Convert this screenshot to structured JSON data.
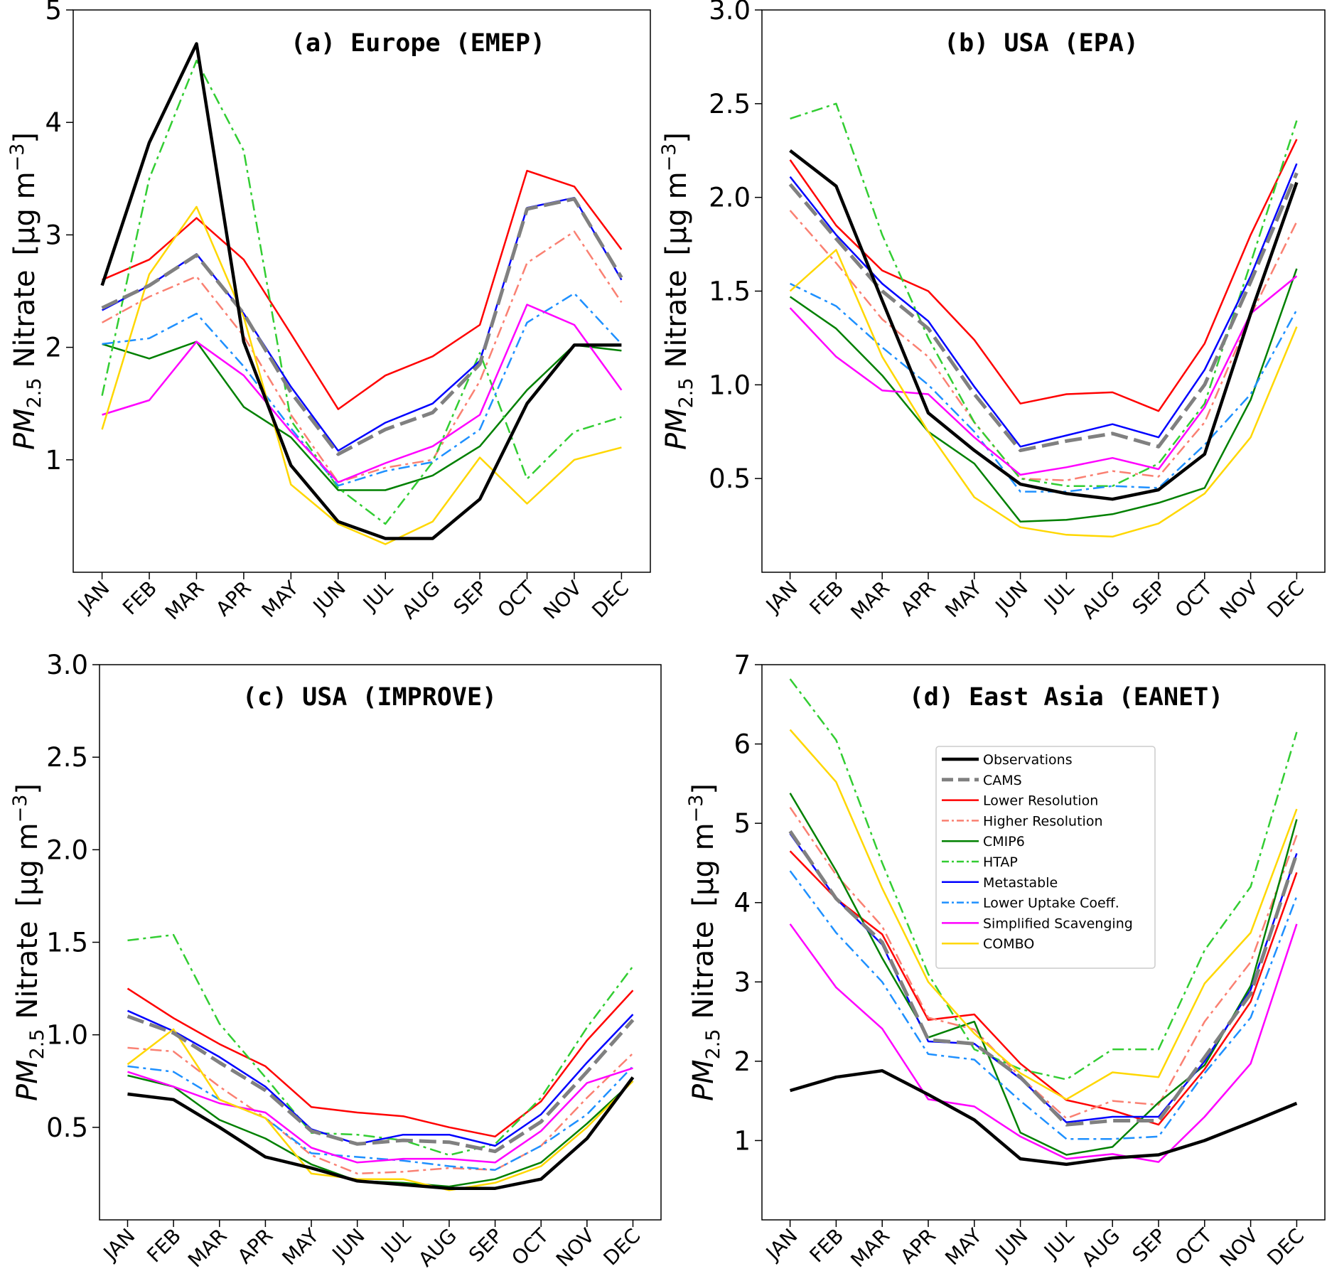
{
  "chart_data": [
    {
      "type": "line",
      "title": "(a) Europe (EMEP)",
      "ylabel_main": "PM",
      "ylabel_sub": "2.5",
      "ylabel_rest": "Nitrate",
      "ylabel_unit": "[µg m",
      "ylabel_exp": "−3",
      "ylabel_close": "]",
      "ylim": [
        0.0,
        5.0
      ],
      "yticks": [
        1,
        2,
        3,
        4,
        5
      ],
      "ytick_labels": [
        "1",
        "2",
        "3",
        "4",
        "5"
      ],
      "x": [
        "JAN",
        "FEB",
        "MAR",
        "APR",
        "MAY",
        "JUN",
        "JUL",
        "AUG",
        "SEP",
        "OCT",
        "NOV",
        "DEC"
      ],
      "series": [
        {
          "name": "Observations",
          "values": [
            2.55,
            3.82,
            4.7,
            2.05,
            0.95,
            0.45,
            0.3,
            0.3,
            0.65,
            1.5,
            2.02,
            2.02
          ]
        },
        {
          "name": "CAMS",
          "values": [
            2.35,
            2.55,
            2.82,
            2.3,
            1.6,
            1.05,
            1.27,
            1.42,
            1.85,
            3.23,
            3.32,
            2.62
          ]
        },
        {
          "name": "Lower Resolution",
          "values": [
            2.6,
            2.78,
            3.15,
            2.78,
            2.12,
            1.45,
            1.75,
            1.92,
            2.2,
            3.57,
            3.43,
            2.87
          ]
        },
        {
          "name": "Higher Resolution",
          "values": [
            2.22,
            2.45,
            2.63,
            2.1,
            1.4,
            0.8,
            0.93,
            1.0,
            1.7,
            2.75,
            3.03,
            2.4
          ]
        },
        {
          "name": "CMIP6",
          "values": [
            2.03,
            1.9,
            2.05,
            1.47,
            1.2,
            0.73,
            0.73,
            0.86,
            1.12,
            1.62,
            2.02,
            1.97
          ]
        },
        {
          "name": "HTAP",
          "values": [
            1.57,
            3.5,
            4.55,
            3.75,
            1.35,
            0.75,
            0.43,
            0.98,
            1.95,
            0.83,
            1.25,
            1.38
          ]
        },
        {
          "name": "Metastable",
          "values": [
            2.33,
            2.55,
            2.83,
            2.3,
            1.65,
            1.08,
            1.33,
            1.5,
            1.88,
            3.24,
            3.33,
            2.6
          ]
        },
        {
          "name": "Lower Uptake Coeff.",
          "values": [
            2.03,
            2.08,
            2.3,
            1.83,
            1.28,
            0.77,
            0.9,
            0.98,
            1.27,
            2.22,
            2.48,
            2.03
          ]
        },
        {
          "name": "Simplified Scavenging",
          "values": [
            1.4,
            1.53,
            2.05,
            1.75,
            1.25,
            0.8,
            0.97,
            1.12,
            1.4,
            2.38,
            2.2,
            1.62
          ]
        },
        {
          "name": "COMBO",
          "values": [
            1.27,
            2.65,
            3.25,
            2.27,
            0.78,
            0.43,
            0.25,
            0.45,
            1.02,
            0.61,
            1.0,
            1.11
          ]
        }
      ]
    },
    {
      "type": "line",
      "title": "(b) USA (EPA)",
      "ylabel_main": "PM",
      "ylabel_sub": "2.5",
      "ylabel_rest": "Nitrate",
      "ylabel_unit": "[µg m",
      "ylabel_exp": "−3",
      "ylabel_close": "]",
      "ylim": [
        0.0,
        3.0
      ],
      "yticks": [
        0.5,
        1.0,
        1.5,
        2.0,
        2.5,
        3.0
      ],
      "ytick_labels": [
        "0.5",
        "1.0",
        "1.5",
        "2.0",
        "2.5",
        "3.0"
      ],
      "x": [
        "JAN",
        "FEB",
        "MAR",
        "APR",
        "MAY",
        "JUN",
        "JUL",
        "AUG",
        "SEP",
        "OCT",
        "NOV",
        "DEC"
      ],
      "series": [
        {
          "name": "Observations",
          "values": [
            2.25,
            2.06,
            1.45,
            0.85,
            0.65,
            0.47,
            0.42,
            0.39,
            0.44,
            0.63,
            1.38,
            2.08
          ]
        },
        {
          "name": "CAMS",
          "values": [
            2.07,
            1.78,
            1.5,
            1.3,
            0.95,
            0.65,
            0.7,
            0.74,
            0.67,
            1.0,
            1.55,
            2.13
          ]
        },
        {
          "name": "Lower Resolution",
          "values": [
            2.2,
            1.85,
            1.61,
            1.5,
            1.24,
            0.9,
            0.95,
            0.96,
            0.86,
            1.22,
            1.8,
            2.31
          ]
        },
        {
          "name": "Higher Resolution",
          "values": [
            1.93,
            1.65,
            1.35,
            1.15,
            0.8,
            0.5,
            0.49,
            0.54,
            0.51,
            0.8,
            1.37,
            1.87
          ]
        },
        {
          "name": "CMIP6",
          "values": [
            1.47,
            1.3,
            1.05,
            0.75,
            0.58,
            0.27,
            0.28,
            0.31,
            0.37,
            0.45,
            0.92,
            1.62
          ]
        },
        {
          "name": "HTAP",
          "values": [
            2.42,
            2.5,
            1.8,
            1.25,
            0.8,
            0.5,
            0.46,
            0.46,
            0.58,
            0.9,
            1.65,
            2.41
          ]
        },
        {
          "name": "Metastable",
          "values": [
            2.11,
            1.8,
            1.54,
            1.34,
            0.99,
            0.67,
            0.73,
            0.79,
            0.72,
            1.08,
            1.58,
            2.18
          ]
        },
        {
          "name": "Lower Uptake Coeff.",
          "values": [
            1.54,
            1.42,
            1.2,
            1.0,
            0.75,
            0.43,
            0.43,
            0.46,
            0.45,
            0.68,
            0.95,
            1.4
          ]
        },
        {
          "name": "Simplified Scavenging",
          "values": [
            1.41,
            1.15,
            0.97,
            0.95,
            0.72,
            0.52,
            0.56,
            0.61,
            0.55,
            0.88,
            1.38,
            1.58
          ]
        },
        {
          "name": "COMBO",
          "values": [
            1.5,
            1.72,
            1.15,
            0.75,
            0.4,
            0.24,
            0.2,
            0.19,
            0.26,
            0.42,
            0.72,
            1.31
          ]
        }
      ]
    },
    {
      "type": "line",
      "title": "(c) USA (IMPROVE)",
      "ylabel_main": "PM",
      "ylabel_sub": "2.5",
      "ylabel_rest": "Nitrate",
      "ylabel_unit": "[µg m",
      "ylabel_exp": "−3",
      "ylabel_close": "]",
      "ylim": [
        0.0,
        3.0
      ],
      "yticks": [
        0.5,
        1.0,
        1.5,
        2.0,
        2.5,
        3.0
      ],
      "ytick_labels": [
        "0.5",
        "1.0",
        "1.5",
        "2.0",
        "2.5",
        "3.0"
      ],
      "x": [
        "JAN",
        "FEB",
        "MAR",
        "APR",
        "MAY",
        "JUN",
        "JUL",
        "AUG",
        "SEP",
        "OCT",
        "NOV",
        "DEC"
      ],
      "series": [
        {
          "name": "Observations",
          "values": [
            0.68,
            0.65,
            0.5,
            0.34,
            0.28,
            0.21,
            0.19,
            0.17,
            0.17,
            0.22,
            0.44,
            0.77
          ]
        },
        {
          "name": "CAMS",
          "values": [
            1.1,
            1.01,
            0.85,
            0.7,
            0.48,
            0.41,
            0.43,
            0.42,
            0.37,
            0.53,
            0.8,
            1.08
          ]
        },
        {
          "name": "Lower Resolution",
          "values": [
            1.25,
            1.09,
            0.95,
            0.83,
            0.61,
            0.58,
            0.56,
            0.5,
            0.45,
            0.64,
            0.97,
            1.24
          ]
        },
        {
          "name": "Higher Resolution",
          "values": [
            0.93,
            0.91,
            0.72,
            0.55,
            0.35,
            0.25,
            0.26,
            0.28,
            0.27,
            0.4,
            0.66,
            0.9
          ]
        },
        {
          "name": "CMIP6",
          "values": [
            0.78,
            0.72,
            0.54,
            0.44,
            0.3,
            0.21,
            0.2,
            0.18,
            0.22,
            0.31,
            0.52,
            0.75
          ]
        },
        {
          "name": "HTAP",
          "values": [
            1.51,
            1.54,
            1.06,
            0.77,
            0.47,
            0.46,
            0.43,
            0.35,
            0.41,
            0.66,
            1.04,
            1.37
          ]
        },
        {
          "name": "Metastable",
          "values": [
            1.13,
            1.02,
            0.88,
            0.72,
            0.49,
            0.41,
            0.46,
            0.46,
            0.4,
            0.57,
            0.85,
            1.11
          ]
        },
        {
          "name": "Lower Uptake Coeff.",
          "values": [
            0.83,
            0.8,
            0.65,
            0.55,
            0.36,
            0.34,
            0.32,
            0.29,
            0.27,
            0.4,
            0.57,
            0.83
          ]
        },
        {
          "name": "Simplified Scavenging",
          "values": [
            0.8,
            0.72,
            0.63,
            0.58,
            0.39,
            0.31,
            0.33,
            0.33,
            0.31,
            0.48,
            0.74,
            0.82
          ]
        },
        {
          "name": "COMBO",
          "values": [
            0.84,
            1.03,
            0.65,
            0.55,
            0.25,
            0.22,
            0.22,
            0.16,
            0.2,
            0.29,
            0.5,
            0.75
          ]
        }
      ]
    },
    {
      "type": "line",
      "title": "(d) East Asia (EANET)",
      "ylabel_main": "PM",
      "ylabel_sub": "2.5",
      "ylabel_rest": "Nitrate",
      "ylabel_unit": "[µg m",
      "ylabel_exp": "−3",
      "ylabel_close": "]",
      "ylim": [
        0.0,
        7.0
      ],
      "yticks": [
        1,
        2,
        3,
        4,
        5,
        6,
        7
      ],
      "ytick_labels": [
        "1",
        "2",
        "3",
        "4",
        "5",
        "6",
        "7"
      ],
      "x": [
        "JAN",
        "FEB",
        "MAR",
        "APR",
        "MAY",
        "JUN",
        "JUL",
        "AUG",
        "SEP",
        "OCT",
        "NOV",
        "DEC"
      ],
      "legend_position": "upper center",
      "series": [
        {
          "name": "Observations",
          "values": [
            1.63,
            1.8,
            1.88,
            1.58,
            1.26,
            0.77,
            0.7,
            0.78,
            0.82,
            1.0,
            1.23,
            1.47
          ]
        },
        {
          "name": "CAMS",
          "values": [
            4.9,
            4.05,
            3.5,
            2.27,
            2.22,
            1.8,
            1.2,
            1.25,
            1.25,
            2.05,
            2.85,
            4.62
          ]
        },
        {
          "name": "Lower Resolution",
          "values": [
            4.65,
            4.05,
            3.6,
            2.52,
            2.59,
            1.97,
            1.51,
            1.38,
            1.2,
            1.9,
            2.75,
            4.38
          ]
        },
        {
          "name": "Higher Resolution",
          "values": [
            5.2,
            4.35,
            3.7,
            2.55,
            2.4,
            1.8,
            1.28,
            1.5,
            1.45,
            2.5,
            3.25,
            4.85
          ]
        },
        {
          "name": "CMIP6",
          "values": [
            5.38,
            4.4,
            3.3,
            2.3,
            2.5,
            1.1,
            0.82,
            0.92,
            1.48,
            1.95,
            2.95,
            5.05
          ]
        },
        {
          "name": "HTAP",
          "values": [
            6.82,
            6.05,
            4.5,
            3.1,
            2.15,
            1.9,
            1.77,
            2.15,
            2.15,
            3.4,
            4.2,
            6.15
          ]
        },
        {
          "name": "Metastable",
          "values": [
            4.87,
            4.05,
            3.47,
            2.25,
            2.22,
            1.78,
            1.23,
            1.3,
            1.3,
            2.0,
            2.9,
            4.62
          ]
        },
        {
          "name": "Lower Uptake Coeff.",
          "values": [
            4.4,
            3.62,
            3.0,
            2.09,
            2.02,
            1.5,
            1.02,
            1.02,
            1.05,
            1.85,
            2.55,
            4.08
          ]
        },
        {
          "name": "Simplified Scavenging",
          "values": [
            3.73,
            2.93,
            2.41,
            1.52,
            1.43,
            1.05,
            0.77,
            0.83,
            0.73,
            1.3,
            1.97,
            3.73
          ]
        },
        {
          "name": "COMBO",
          "values": [
            6.18,
            5.52,
            4.18,
            3.0,
            2.35,
            1.85,
            1.52,
            1.86,
            1.8,
            2.98,
            3.62,
            5.18
          ]
        }
      ]
    }
  ],
  "styles": {
    "Observations": {
      "color": "#000000",
      "width": 4.5,
      "dash": ""
    },
    "CAMS": {
      "color": "#808080",
      "width": 5,
      "dash": "24,9"
    },
    "Lower Resolution": {
      "color": "#ff0000",
      "width": 2.5,
      "dash": ""
    },
    "Higher Resolution": {
      "color": "#fa8072",
      "width": 2.5,
      "dash": "16,6,4,6"
    },
    "CMIP6": {
      "color": "#008000",
      "width": 2.5,
      "dash": ""
    },
    "HTAP": {
      "color": "#32cd32",
      "width": 2.5,
      "dash": "16,6,4,6"
    },
    "Metastable": {
      "color": "#0000ff",
      "width": 2.5,
      "dash": ""
    },
    "Lower Uptake Coeff.": {
      "color": "#1e90ff",
      "width": 2.5,
      "dash": "16,6,4,6"
    },
    "Simplified Scavenging": {
      "color": "#ff00ff",
      "width": 2.5,
      "dash": ""
    },
    "COMBO": {
      "color": "#ffd700",
      "width": 2.5,
      "dash": ""
    }
  }
}
